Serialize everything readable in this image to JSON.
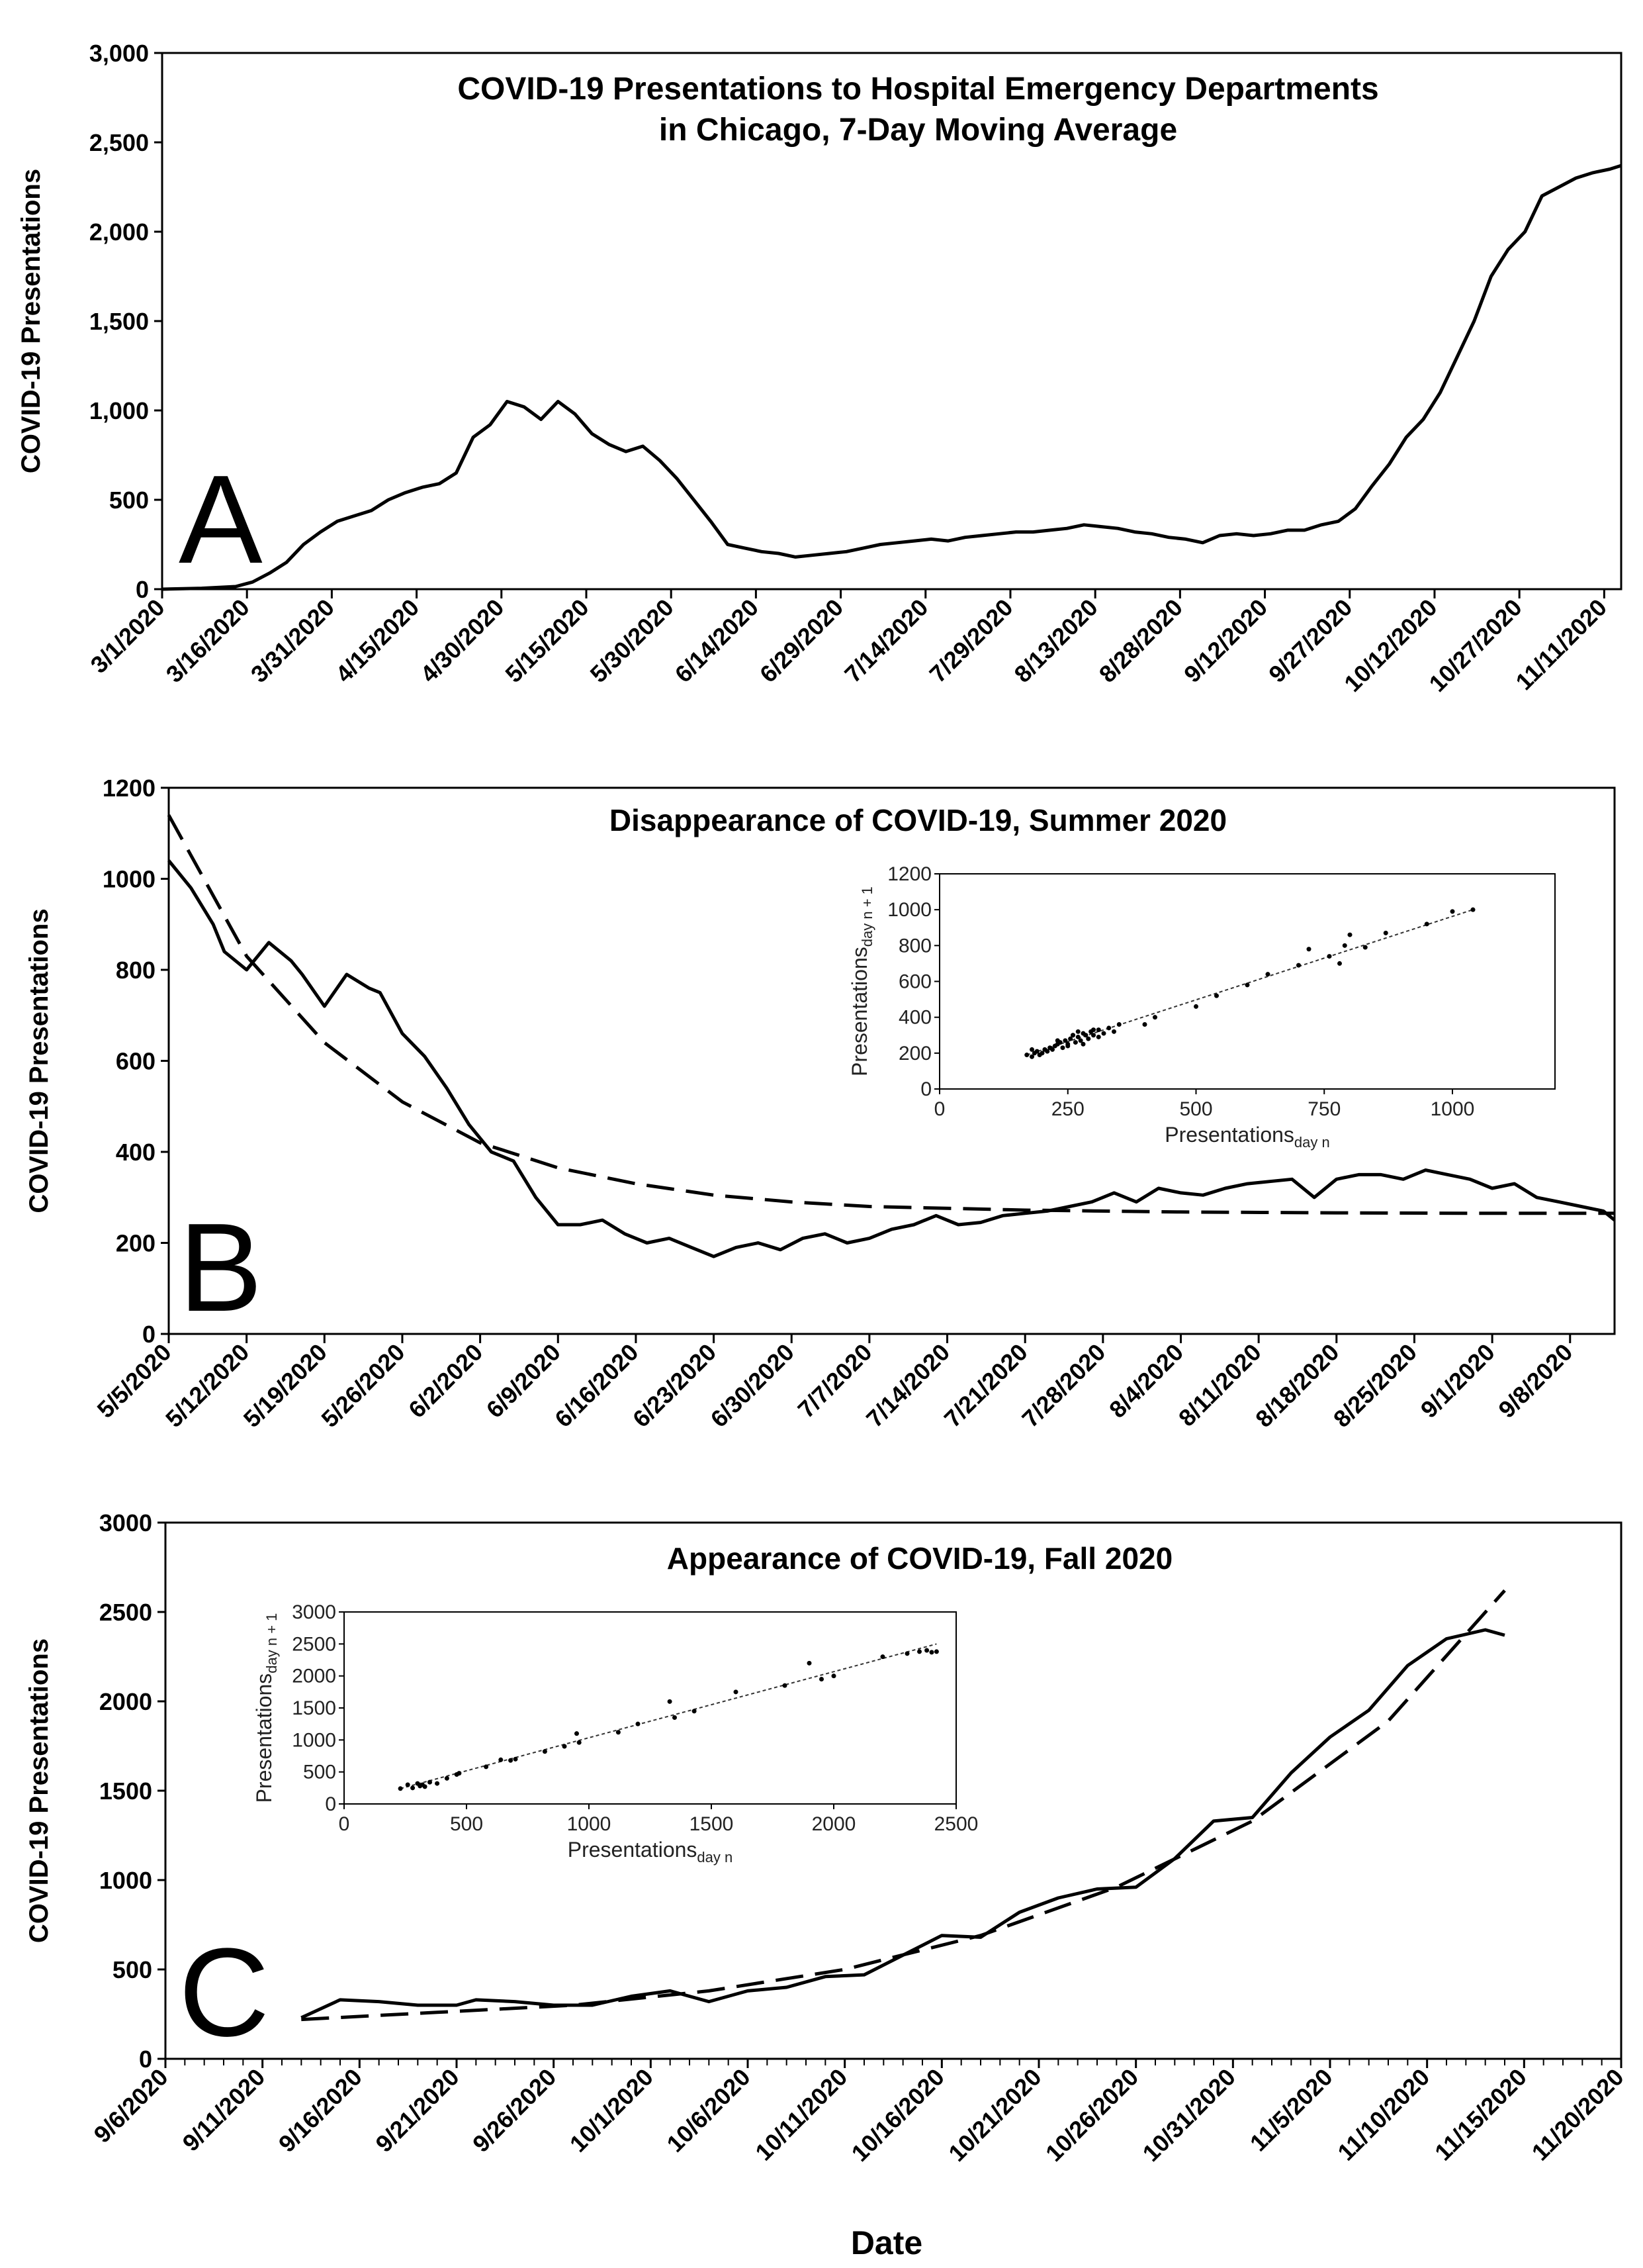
{
  "chart_data": [
    {
      "panel": "A",
      "type": "line",
      "title_lines": [
        "COVID-19 Presentations to Hospital Emergency Departments",
        "in Chicago, 7-Day Moving Average"
      ],
      "ylabel": "COVID-19 Presentations",
      "ylim": [
        0,
        3000
      ],
      "yticks": [
        0,
        500,
        1000,
        1500,
        2000,
        2500,
        3000
      ],
      "ytick_labels": [
        "0",
        "500",
        "1,000",
        "1,500",
        "2,000",
        "2,500",
        "3,000"
      ],
      "xlim": [
        "2020-03-01",
        "2020-11-14"
      ],
      "xtick_labels": [
        "3/1/2020",
        "3/16/2020",
        "3/31/2020",
        "4/15/2020",
        "4/30/2020",
        "5/15/2020",
        "5/30/2020",
        "6/14/2020",
        "6/29/2020",
        "7/14/2020",
        "7/29/2020",
        "8/13/2020",
        "8/28/2020",
        "9/12/2020",
        "9/27/2020",
        "10/12/2020",
        "10/27/2020",
        "11/11/2020"
      ],
      "series": [
        {
          "x": [
            "2020-03-01",
            "2020-03-08",
            "2020-03-14",
            "2020-03-17",
            "2020-03-20",
            "2020-03-23",
            "2020-03-26",
            "2020-03-29",
            "2020-04-01",
            "2020-04-04",
            "2020-04-07",
            "2020-04-10",
            "2020-04-13",
            "2020-04-16",
            "2020-04-19",
            "2020-04-22",
            "2020-04-25",
            "2020-04-28",
            "2020-05-01",
            "2020-05-04",
            "2020-05-07",
            "2020-05-10",
            "2020-05-13",
            "2020-05-16",
            "2020-05-19",
            "2020-05-22",
            "2020-05-25",
            "2020-05-28",
            "2020-05-31",
            "2020-06-03",
            "2020-06-06",
            "2020-06-09",
            "2020-06-12",
            "2020-06-15",
            "2020-06-18",
            "2020-06-21",
            "2020-06-24",
            "2020-06-27",
            "2020-06-30",
            "2020-07-03",
            "2020-07-06",
            "2020-07-09",
            "2020-07-12",
            "2020-07-15",
            "2020-07-18",
            "2020-07-21",
            "2020-07-24",
            "2020-07-27",
            "2020-07-30",
            "2020-08-02",
            "2020-08-05",
            "2020-08-08",
            "2020-08-11",
            "2020-08-14",
            "2020-08-17",
            "2020-08-20",
            "2020-08-23",
            "2020-08-26",
            "2020-08-29",
            "2020-09-01",
            "2020-09-04",
            "2020-09-07",
            "2020-09-10",
            "2020-09-13",
            "2020-09-16",
            "2020-09-19",
            "2020-09-22",
            "2020-09-25",
            "2020-09-28",
            "2020-10-01",
            "2020-10-04",
            "2020-10-07",
            "2020-10-10",
            "2020-10-13",
            "2020-10-16",
            "2020-10-19",
            "2020-10-22",
            "2020-10-25",
            "2020-10-28",
            "2020-10-31",
            "2020-11-03",
            "2020-11-06",
            "2020-11-09",
            "2020-11-12",
            "2020-11-14"
          ],
          "y": [
            0,
            5,
            15,
            40,
            90,
            150,
            250,
            320,
            380,
            410,
            440,
            500,
            540,
            570,
            590,
            650,
            850,
            920,
            1050,
            1020,
            950,
            1050,
            980,
            870,
            810,
            770,
            800,
            720,
            620,
            500,
            380,
            250,
            230,
            210,
            200,
            180,
            190,
            200,
            210,
            230,
            250,
            260,
            270,
            280,
            270,
            290,
            300,
            310,
            320,
            320,
            330,
            340,
            360,
            350,
            340,
            320,
            310,
            290,
            280,
            260,
            300,
            310,
            300,
            310,
            330,
            330,
            360,
            380,
            450,
            580,
            700,
            850,
            950,
            1100,
            1300,
            1500,
            1750,
            1900,
            2000,
            2200,
            2250,
            2300,
            2330,
            2350,
            2370
          ]
        }
      ]
    },
    {
      "panel": "B",
      "type": "line",
      "title": "Disappearance of COVID-19, Summer 2020",
      "ylabel": "COVID-19 Presentations",
      "ylim": [
        0,
        1200
      ],
      "yticks": [
        0,
        200,
        400,
        600,
        800,
        1000,
        1200
      ],
      "xlim": [
        "2020-05-05",
        "2020-09-12"
      ],
      "xtick_labels": [
        "5/5/2020",
        "5/12/2020",
        "5/19/2020",
        "5/26/2020",
        "6/2/2020",
        "6/9/2020",
        "6/16/2020",
        "6/23/2020",
        "6/30/2020",
        "7/7/2020",
        "7/14/2020",
        "7/21/2020",
        "7/28/2020",
        "8/4/2020",
        "8/11/2020",
        "8/18/2020",
        "8/25/2020",
        "9/1/2020",
        "9/8/2020"
      ],
      "series": [
        {
          "style": "solid",
          "x": [
            "2020-05-05",
            "2020-05-07",
            "2020-05-09",
            "2020-05-10",
            "2020-05-12",
            "2020-05-14",
            "2020-05-16",
            "2020-05-17",
            "2020-05-19",
            "2020-05-21",
            "2020-05-23",
            "2020-05-24",
            "2020-05-26",
            "2020-05-28",
            "2020-05-30",
            "2020-06-01",
            "2020-06-03",
            "2020-06-05",
            "2020-06-07",
            "2020-06-09",
            "2020-06-11",
            "2020-06-13",
            "2020-06-15",
            "2020-06-17",
            "2020-06-19",
            "2020-06-21",
            "2020-06-23",
            "2020-06-25",
            "2020-06-27",
            "2020-06-29",
            "2020-07-01",
            "2020-07-03",
            "2020-07-05",
            "2020-07-07",
            "2020-07-09",
            "2020-07-11",
            "2020-07-13",
            "2020-07-15",
            "2020-07-17",
            "2020-07-19",
            "2020-07-21",
            "2020-07-23",
            "2020-07-25",
            "2020-07-27",
            "2020-07-29",
            "2020-07-31",
            "2020-08-02",
            "2020-08-04",
            "2020-08-06",
            "2020-08-08",
            "2020-08-10",
            "2020-08-12",
            "2020-08-14",
            "2020-08-16",
            "2020-08-18",
            "2020-08-20",
            "2020-08-22",
            "2020-08-24",
            "2020-08-26",
            "2020-08-28",
            "2020-08-30",
            "2020-09-01",
            "2020-09-03",
            "2020-09-05",
            "2020-09-07",
            "2020-09-09",
            "2020-09-11",
            "2020-09-12"
          ],
          "y": [
            1040,
            980,
            900,
            840,
            800,
            860,
            820,
            790,
            720,
            790,
            760,
            750,
            660,
            610,
            540,
            460,
            400,
            380,
            300,
            240,
            240,
            250,
            220,
            200,
            210,
            190,
            170,
            190,
            200,
            185,
            210,
            220,
            200,
            210,
            230,
            240,
            260,
            240,
            245,
            260,
            265,
            270,
            280,
            290,
            310,
            290,
            320,
            310,
            305,
            320,
            330,
            335,
            340,
            300,
            340,
            350,
            350,
            340,
            360,
            350,
            340,
            320,
            330,
            300,
            290,
            280,
            270,
            250
          ]
        },
        {
          "style": "dashed",
          "x": [
            "2020-05-05",
            "2020-05-12",
            "2020-05-19",
            "2020-05-26",
            "2020-06-02",
            "2020-06-09",
            "2020-06-16",
            "2020-06-23",
            "2020-06-30",
            "2020-07-07",
            "2020-07-21",
            "2020-08-04",
            "2020-08-18",
            "2020-09-01",
            "2020-09-12"
          ],
          "y": [
            1140,
            830,
            640,
            510,
            420,
            365,
            330,
            305,
            290,
            280,
            272,
            268,
            266,
            265,
            265
          ]
        }
      ],
      "inset": {
        "type": "scatter",
        "xlabel": "Presentations",
        "xlabel_sub": "day n",
        "ylabel": "Presentations",
        "ylabel_sub": "day n + 1",
        "xlim": [
          0,
          1200
        ],
        "ylim": [
          0,
          1200
        ],
        "xticks": [
          0,
          250,
          500,
          750,
          1000
        ],
        "yticks": [
          0,
          200,
          400,
          600,
          800,
          1000,
          1200
        ],
        "trend": {
          "x": [
            170,
            1040
          ],
          "y": [
            190,
            1000
          ]
        },
        "points": {
          "x": [
            170,
            180,
            185,
            190,
            195,
            200,
            205,
            210,
            215,
            220,
            225,
            230,
            235,
            240,
            245,
            250,
            255,
            260,
            265,
            270,
            275,
            280,
            285,
            290,
            295,
            300,
            310,
            320,
            330,
            340,
            350,
            400,
            420,
            500,
            540,
            600,
            640,
            700,
            720,
            760,
            780,
            790,
            800,
            830,
            870,
            950,
            1000,
            1040,
            180,
            230,
            250,
            260,
            270,
            280,
            300,
            310
          ],
          "y": [
            190,
            180,
            200,
            210,
            190,
            200,
            220,
            210,
            230,
            220,
            240,
            250,
            260,
            230,
            270,
            250,
            280,
            300,
            260,
            290,
            270,
            310,
            300,
            280,
            320,
            300,
            330,
            310,
            340,
            320,
            360,
            360,
            400,
            460,
            520,
            580,
            640,
            690,
            780,
            740,
            700,
            800,
            860,
            790,
            870,
            920,
            990,
            1000,
            220,
            270,
            240,
            300,
            320,
            250,
            330,
            290
          ]
        }
      }
    },
    {
      "panel": "C",
      "type": "line",
      "title": "Appearance of COVID-19, Fall 2020",
      "xlabel": "Date",
      "ylabel": "COVID-19 Presentations",
      "ylim": [
        0,
        3000
      ],
      "yticks": [
        0,
        500,
        1000,
        1500,
        2000,
        2500,
        3000
      ],
      "xlim": [
        "2020-09-06",
        "2020-11-20"
      ],
      "xtick_labels": [
        "9/6/2020",
        "9/11/2020",
        "9/16/2020",
        "9/21/2020",
        "9/26/2020",
        "10/1/2020",
        "10/6/2020",
        "10/11/2020",
        "10/16/2020",
        "10/21/2020",
        "10/26/2020",
        "10/31/2020",
        "11/5/2020",
        "11/10/2020",
        "11/15/2020",
        "11/20/2020"
      ],
      "series": [
        {
          "style": "solid",
          "x": [
            "2020-09-13",
            "2020-09-15",
            "2020-09-17",
            "2020-09-19",
            "2020-09-21",
            "2020-09-22",
            "2020-09-24",
            "2020-09-26",
            "2020-09-28",
            "2020-09-30",
            "2020-10-02",
            "2020-10-04",
            "2020-10-06",
            "2020-10-08",
            "2020-10-10",
            "2020-10-12",
            "2020-10-14",
            "2020-10-16",
            "2020-10-18",
            "2020-10-20",
            "2020-10-22",
            "2020-10-24",
            "2020-10-26",
            "2020-10-28",
            "2020-10-30",
            "2020-11-01",
            "2020-11-03",
            "2020-11-05",
            "2020-11-07",
            "2020-11-09",
            "2020-11-11",
            "2020-11-13",
            "2020-11-14"
          ],
          "y": [
            230,
            330,
            320,
            300,
            300,
            330,
            320,
            300,
            300,
            350,
            380,
            320,
            380,
            400,
            460,
            470,
            580,
            690,
            680,
            820,
            900,
            950,
            960,
            1120,
            1330,
            1350,
            1600,
            1800,
            1950,
            2200,
            2350,
            2400,
            2370
          ]
        },
        {
          "style": "dashed",
          "x": [
            "2020-09-13",
            "2020-09-20",
            "2020-09-27",
            "2020-10-04",
            "2020-10-11",
            "2020-10-18",
            "2020-10-25",
            "2020-11-01",
            "2020-11-08",
            "2020-11-14"
          ],
          "y": [
            220,
            260,
            300,
            380,
            500,
            690,
            960,
            1330,
            1890,
            2620
          ]
        }
      ],
      "inset": {
        "type": "scatter",
        "xlabel": "Presentations",
        "xlabel_sub": "day n",
        "ylabel": "Presentations",
        "ylabel_sub": "day n + 1",
        "xlim": [
          0,
          2500
        ],
        "ylim": [
          0,
          3000
        ],
        "xticks": [
          0,
          500,
          1000,
          1500,
          2000,
          2500
        ],
        "yticks": [
          0,
          500,
          1000,
          1500,
          2000,
          2500,
          3000
        ],
        "trend": {
          "x": [
            230,
            2420
          ],
          "y": [
            240,
            2500
          ]
        },
        "points": {
          "x": [
            230,
            260,
            280,
            300,
            310,
            320,
            330,
            350,
            380,
            420,
            460,
            470,
            580,
            640,
            680,
            700,
            820,
            900,
            950,
            960,
            1120,
            1200,
            1330,
            1350,
            1430,
            1600,
            1800,
            1900,
            1950,
            2000,
            2200,
            2300,
            2350,
            2380,
            2400,
            2420
          ],
          "y": [
            240,
            300,
            250,
            320,
            280,
            300,
            270,
            340,
            320,
            400,
            460,
            480,
            580,
            690,
            680,
            700,
            820,
            900,
            1100,
            960,
            1120,
            1250,
            1600,
            1350,
            1450,
            1750,
            1850,
            2200,
            1950,
            2000,
            2300,
            2350,
            2380,
            2400,
            2370,
            2380
          ]
        }
      }
    }
  ],
  "panel_letters": [
    "A",
    "B",
    "C"
  ]
}
